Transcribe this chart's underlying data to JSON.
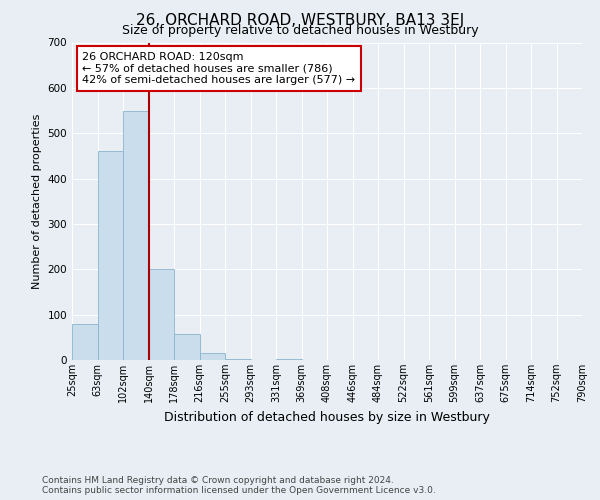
{
  "title": "26, ORCHARD ROAD, WESTBURY, BA13 3EJ",
  "subtitle": "Size of property relative to detached houses in Westbury",
  "xlabel": "Distribution of detached houses by size in Westbury",
  "ylabel": "Number of detached properties",
  "bin_labels": [
    "25sqm",
    "63sqm",
    "102sqm",
    "140sqm",
    "178sqm",
    "216sqm",
    "255sqm",
    "293sqm",
    "331sqm",
    "369sqm",
    "408sqm",
    "446sqm",
    "484sqm",
    "522sqm",
    "561sqm",
    "599sqm",
    "637sqm",
    "675sqm",
    "714sqm",
    "752sqm",
    "790sqm"
  ],
  "bar_values": [
    80,
    460,
    550,
    200,
    57,
    15,
    3,
    0,
    3,
    0,
    0,
    0,
    0,
    0,
    0,
    0,
    0,
    0,
    0,
    0
  ],
  "bar_color": "#c9dded",
  "bar_edge_color": "#8ab4cc",
  "property_line_label": "26 ORCHARD ROAD: 120sqm",
  "annotation_line1": "← 57% of detached houses are smaller (786)",
  "annotation_line2": "42% of semi-detached houses are larger (577) →",
  "annotation_box_color": "#ffffff",
  "annotation_box_edge_color": "#cc0000",
  "vline_color": "#aa0000",
  "ylim": [
    0,
    700
  ],
  "yticks": [
    0,
    100,
    200,
    300,
    400,
    500,
    600,
    700
  ],
  "footer_line1": "Contains HM Land Registry data © Crown copyright and database right 2024.",
  "footer_line2": "Contains public sector information licensed under the Open Government Licence v3.0.",
  "bg_color": "#e8eef4",
  "plot_bg_color": "#e8eef4",
  "grid_color": "#ffffff",
  "title_fontsize": 11,
  "subtitle_fontsize": 9,
  "ylabel_fontsize": 8,
  "xlabel_fontsize": 9,
  "tick_fontsize": 7,
  "footer_fontsize": 6.5
}
